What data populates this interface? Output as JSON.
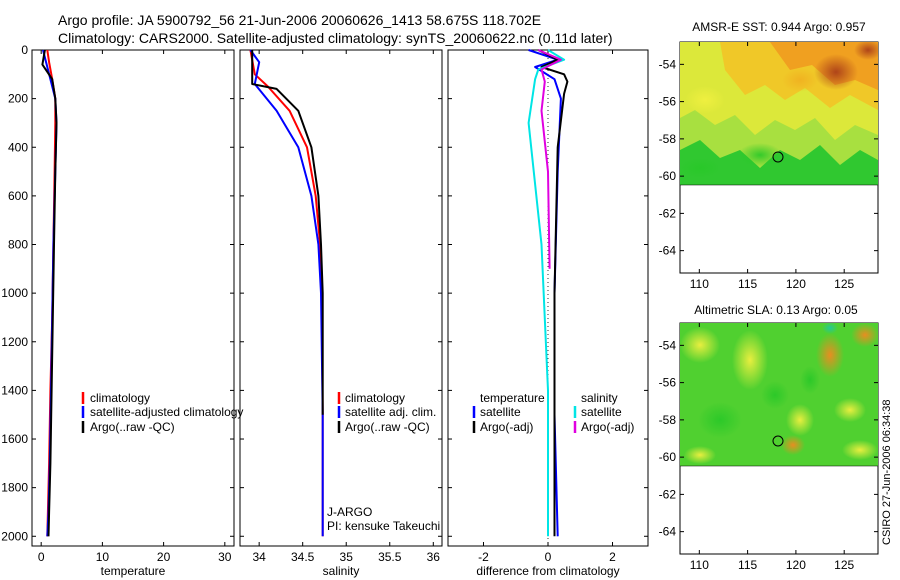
{
  "header": {
    "line1": "Argo profile: JA 5900792_56 21-Jun-2006 20060626_1413 58.675S 118.702E",
    "line2": "Climatology: CARS2000. Satellite-adjusted climatology: synTS_20060622.nc (0.11d later)"
  },
  "stamp": "CSIRO 27-Jun-2006 06:34:38",
  "colors": {
    "red": "#ff0000",
    "blue": "#0000ff",
    "black": "#000000",
    "cyan": "#00e5e5",
    "magenta": "#e000e0"
  },
  "chart_data": [
    {
      "type": "line",
      "name": "temperature-profile",
      "xlabel": "temperature",
      "ylabel": "",
      "xlim": [
        -1.5,
        31.5
      ],
      "ylim": [
        2040,
        0
      ],
      "xticks": [
        0,
        10,
        20,
        30
      ],
      "xtick_labels": [
        "0",
        "10",
        "20",
        "30"
      ],
      "yticks": [
        0,
        200,
        400,
        600,
        800,
        1000,
        1200,
        1400,
        1600,
        1800,
        2000
      ],
      "ytick_labels": [
        "0",
        "200",
        "400",
        "600",
        "800",
        "1000",
        "1200",
        "1400",
        "1600",
        "1800",
        "2000"
      ],
      "legend": [
        "climatology",
        "satellite-adjusted climatology",
        "Argo(..raw -QC)"
      ],
      "series": [
        {
          "name": "climatology",
          "color": "#ff0000",
          "x": [
            1.0,
            1.3,
            1.8,
            2.3,
            2.3,
            2.2,
            2.0,
            1.8,
            1.5,
            1.3,
            1.1,
            1.0
          ],
          "y": [
            0,
            50,
            120,
            200,
            300,
            500,
            800,
            1100,
            1400,
            1700,
            1900,
            2000
          ]
        },
        {
          "name": "satellite-adjusted climatology",
          "color": "#0000ff",
          "x": [
            0.3,
            0.8,
            1.5,
            2.3,
            2.5,
            2.3,
            2.0,
            1.8,
            1.6,
            1.4,
            1.2,
            1.0
          ],
          "y": [
            0,
            50,
            120,
            200,
            300,
            500,
            800,
            1100,
            1400,
            1700,
            1900,
            2000
          ]
        },
        {
          "name": "Argo(..raw -QC)",
          "color": "#000000",
          "x": [
            0.6,
            0.2,
            1.8,
            2.3,
            2.5,
            2.3,
            2.1,
            1.9,
            1.7,
            1.5,
            1.3,
            1.2
          ],
          "y": [
            0,
            60,
            120,
            200,
            300,
            500,
            800,
            1100,
            1400,
            1700,
            1900,
            2000
          ]
        }
      ]
    },
    {
      "type": "line",
      "name": "salinity-profile",
      "xlabel": "salinity",
      "xlim": [
        33.78,
        36.1
      ],
      "ylim": [
        2040,
        0
      ],
      "xticks": [
        34,
        34.5,
        35,
        35.5,
        36
      ],
      "xtick_labels": [
        "34",
        "34.5",
        "35",
        "35.5",
        "36"
      ],
      "legend": [
        "climatology",
        "satellite adj. clim.",
        "Argo(..raw -QC)"
      ],
      "annotation": [
        "J-ARGO",
        "PI: kensuke Takeuchi"
      ],
      "series": [
        {
          "name": "climatology",
          "color": "#ff0000",
          "x": [
            33.9,
            33.95,
            34.1,
            34.35,
            34.55,
            34.65,
            34.7,
            34.72,
            34.73,
            34.73
          ],
          "y": [
            0,
            100,
            150,
            250,
            400,
            600,
            800,
            1000,
            1500,
            2000
          ]
        },
        {
          "name": "satellite adj. clim.",
          "color": "#0000ff",
          "x": [
            33.9,
            34.0,
            33.95,
            34.2,
            34.45,
            34.6,
            34.68,
            34.71,
            34.73,
            34.73
          ],
          "y": [
            0,
            50,
            140,
            250,
            400,
            600,
            800,
            1000,
            1500,
            2000
          ]
        },
        {
          "name": "Argo(..raw -QC)",
          "color": "#000000",
          "x": [
            33.92,
            33.92,
            34.2,
            34.45,
            34.6,
            34.68,
            34.71,
            34.73,
            34.73
          ],
          "y": [
            0,
            140,
            160,
            250,
            400,
            600,
            800,
            1000,
            1500
          ]
        }
      ]
    },
    {
      "type": "line",
      "name": "difference-profile",
      "xlabel": "difference from climatology",
      "xlim": [
        -3.1,
        3.1
      ],
      "ylim": [
        2040,
        0
      ],
      "xticks": [
        -2,
        0,
        2
      ],
      "xtick_labels": [
        "-2",
        "0",
        "2"
      ],
      "legend_temperature": {
        "heading": "temperature",
        "items": [
          "satellite",
          "Argo(-adj)"
        ]
      },
      "legend_salinity": {
        "heading": "salinity",
        "items": [
          "satellite",
          "Argo(-adj)"
        ]
      },
      "series": [
        {
          "name": "temperature satellite",
          "color": "#0000ff",
          "x": [
            -0.6,
            0.3,
            -0.4,
            0.2,
            0.4,
            0.3,
            0.2,
            0.2,
            0.3
          ],
          "y": [
            0,
            40,
            70,
            120,
            200,
            500,
            1000,
            1500,
            2000
          ]
        },
        {
          "name": "temperature Argo(-adj)",
          "color": "#000000",
          "x": [
            -0.3,
            0.3,
            -0.2,
            0.5,
            0.6,
            0.5,
            0.3,
            0.2,
            0.2,
            0.2
          ],
          "y": [
            0,
            40,
            70,
            100,
            130,
            180,
            400,
            1000,
            1500,
            2000
          ]
        },
        {
          "name": "salinity satellite",
          "color": "#00e5e5",
          "x": [
            0.0,
            0.5,
            -0.3,
            -0.4,
            -0.6,
            -0.2,
            0.0,
            0.0
          ],
          "y": [
            0,
            40,
            80,
            120,
            300,
            800,
            1400,
            2000
          ]
        },
        {
          "name": "salinity Argo(-adj)",
          "color": "#e000e0",
          "x": [
            -0.3,
            0.4,
            -0.2,
            -0.1,
            -0.2,
            0.0,
            0.05
          ],
          "y": [
            0,
            40,
            80,
            130,
            250,
            500,
            900
          ]
        }
      ]
    }
  ],
  "maps": [
    {
      "title": "AMSR-E SST: 0.944 Argo: 0.957",
      "lon_range": [
        108,
        128.5
      ],
      "lat_range": [
        -65.2,
        -52.8
      ],
      "data_lat_min": -60,
      "lon_ticks": [
        "110",
        "115",
        "120",
        "125"
      ],
      "lat_ticks": [
        "-54",
        "-56",
        "-58",
        "-60",
        "-62",
        "-64"
      ],
      "float_position": {
        "lon": 118.7,
        "lat": -58.7
      }
    },
    {
      "title": "Altimetric SLA: 0.13 Argo: 0.05",
      "lon_range": [
        108,
        128.5
      ],
      "lat_range": [
        -65.2,
        -52.8
      ],
      "data_lat_min": -60,
      "lon_ticks": [
        "110",
        "115",
        "120",
        "125"
      ],
      "lat_ticks": [
        "-54",
        "-56",
        "-58",
        "-60",
        "-62",
        "-64"
      ],
      "float_position": {
        "lon": 118.7,
        "lat": -58.7
      }
    }
  ]
}
